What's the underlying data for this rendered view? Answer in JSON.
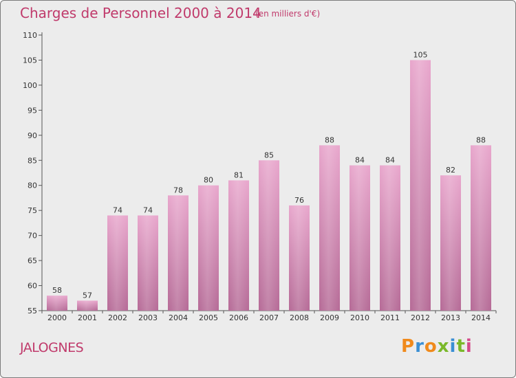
{
  "title": "Charges de Personnel 2000 à 2014",
  "subtitle": "(en milliers d'€)",
  "commune": "JALOGNES",
  "logo": {
    "letters": [
      "P",
      "r",
      "o",
      "x",
      "i",
      "t",
      "i"
    ],
    "colors": [
      "#f08a1c",
      "#3a8fd4",
      "#f08a1c",
      "#7ab82a",
      "#3a8fd4",
      "#7ab82a",
      "#d44a8a"
    ]
  },
  "colors": {
    "bar_top": "#e8a6cc",
    "bar_bottom": "#b56a96",
    "title": "#c03a6b",
    "background": "#ececec"
  },
  "chart_data": {
    "type": "bar",
    "categories": [
      "2000",
      "2001",
      "2002",
      "2003",
      "2004",
      "2005",
      "2006",
      "2007",
      "2008",
      "2009",
      "2010",
      "2011",
      "2012",
      "2013",
      "2014"
    ],
    "values": [
      58,
      57,
      74,
      74,
      78,
      80,
      81,
      85,
      76,
      88,
      84,
      84,
      105,
      82,
      88
    ],
    "ylim": [
      55,
      110
    ],
    "yticks": [
      55,
      60,
      65,
      70,
      75,
      80,
      85,
      90,
      95,
      100,
      105,
      110
    ],
    "grid": false,
    "xlabel": "",
    "ylabel": ""
  }
}
